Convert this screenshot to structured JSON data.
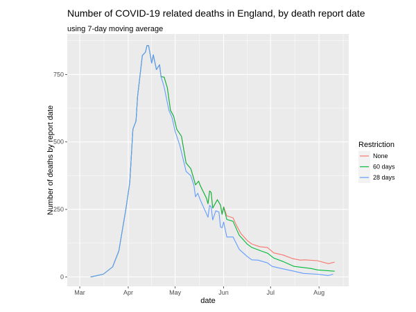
{
  "chart_data": {
    "type": "line",
    "title": "Number of COVID-19 related deaths in England, by death report date",
    "subtitle": "using 7-day moving average",
    "xlabel": "date",
    "ylabel": "Number of deaths by report date",
    "x_unit": "days since 1 Mar",
    "x_ticks": [
      {
        "label": "Mar",
        "day": 0
      },
      {
        "label": "Apr",
        "day": 31
      },
      {
        "label": "May",
        "day": 61
      },
      {
        "label": "Jun",
        "day": 92
      },
      {
        "label": "Jul",
        "day": 122
      },
      {
        "label": "Aug",
        "day": 153
      }
    ],
    "y_ticks": [
      0,
      250,
      500,
      750
    ],
    "xlim": [
      -8,
      172
    ],
    "ylim": [
      -35,
      900
    ],
    "grid": true,
    "legend": {
      "title": "Restriction",
      "placement": "right"
    },
    "series": [
      {
        "name": "None",
        "color": "#F8766D",
        "points": [
          [
            7,
            0
          ],
          [
            15,
            10
          ],
          [
            21,
            37
          ],
          [
            25,
            96
          ],
          [
            29.5,
            252
          ],
          [
            32,
            350
          ],
          [
            34,
            547
          ],
          [
            36,
            578
          ],
          [
            37,
            670
          ],
          [
            40,
            820
          ],
          [
            42,
            833
          ],
          [
            43,
            857
          ],
          [
            44,
            857
          ],
          [
            45,
            826
          ],
          [
            46,
            792
          ],
          [
            47,
            823
          ],
          [
            49,
            768
          ],
          [
            51,
            786
          ],
          [
            52,
            742
          ],
          [
            54,
            740
          ],
          [
            56,
            700
          ],
          [
            58,
            617
          ],
          [
            60,
            596
          ],
          [
            62,
            547
          ],
          [
            65,
            521
          ],
          [
            68,
            422
          ],
          [
            71,
            401
          ],
          [
            74,
            341
          ],
          [
            76,
            355
          ],
          [
            77,
            339
          ],
          [
            81,
            292
          ],
          [
            82,
            271
          ],
          [
            83,
            318
          ],
          [
            84,
            313
          ],
          [
            85,
            255
          ],
          [
            88,
            286
          ],
          [
            90,
            266
          ],
          [
            91,
            232
          ],
          [
            92,
            260
          ],
          [
            94,
            226
          ],
          [
            98,
            219
          ],
          [
            100,
            193
          ],
          [
            103,
            161
          ],
          [
            107,
            135
          ],
          [
            110,
            122
          ],
          [
            115,
            112
          ],
          [
            120,
            109
          ],
          [
            124,
            89
          ],
          [
            130,
            81
          ],
          [
            136,
            68
          ],
          [
            141,
            62
          ],
          [
            144,
            63
          ],
          [
            152,
            60
          ],
          [
            159,
            49
          ],
          [
            163,
            55
          ]
        ]
      },
      {
        "name": "60 days",
        "color": "#00BA38",
        "points": [
          [
            7,
            0
          ],
          [
            15,
            10
          ],
          [
            21,
            37
          ],
          [
            25,
            96
          ],
          [
            29.5,
            252
          ],
          [
            32,
            350
          ],
          [
            34,
            547
          ],
          [
            36,
            578
          ],
          [
            37,
            670
          ],
          [
            40,
            820
          ],
          [
            42,
            833
          ],
          [
            43,
            857
          ],
          [
            44,
            857
          ],
          [
            45,
            826
          ],
          [
            46,
            792
          ],
          [
            47,
            823
          ],
          [
            49,
            768
          ],
          [
            51,
            786
          ],
          [
            52,
            742
          ],
          [
            54,
            740
          ],
          [
            56,
            700
          ],
          [
            58,
            617
          ],
          [
            60,
            596
          ],
          [
            62,
            547
          ],
          [
            65,
            521
          ],
          [
            68,
            422
          ],
          [
            71,
            401
          ],
          [
            74,
            341
          ],
          [
            76,
            355
          ],
          [
            77,
            339
          ],
          [
            81,
            292
          ],
          [
            82,
            271
          ],
          [
            83,
            318
          ],
          [
            84,
            313
          ],
          [
            85,
            255
          ],
          [
            88,
            286
          ],
          [
            90,
            266
          ],
          [
            91,
            232
          ],
          [
            92,
            258
          ],
          [
            94,
            213
          ],
          [
            98,
            206
          ],
          [
            100,
            180
          ],
          [
            102,
            154
          ],
          [
            107,
            122
          ],
          [
            110,
            109
          ],
          [
            116,
            96
          ],
          [
            120,
            88
          ],
          [
            124,
            70
          ],
          [
            130,
            57
          ],
          [
            137,
            39
          ],
          [
            148,
            31
          ],
          [
            152,
            26
          ],
          [
            163,
            21
          ]
        ]
      },
      {
        "name": "28 days",
        "color": "#619CFF",
        "points": [
          [
            7,
            0
          ],
          [
            15,
            10
          ],
          [
            21,
            37
          ],
          [
            25,
            96
          ],
          [
            29.5,
            252
          ],
          [
            32,
            350
          ],
          [
            34,
            547
          ],
          [
            36,
            578
          ],
          [
            37,
            670
          ],
          [
            40,
            820
          ],
          [
            42,
            833
          ],
          [
            43,
            857
          ],
          [
            44,
            857
          ],
          [
            45,
            826
          ],
          [
            46,
            792
          ],
          [
            47,
            823
          ],
          [
            49,
            768
          ],
          [
            51,
            786
          ],
          [
            52,
            742
          ],
          [
            54,
            703
          ],
          [
            57,
            617
          ],
          [
            59,
            591
          ],
          [
            61,
            539
          ],
          [
            64,
            487
          ],
          [
            68,
            391
          ],
          [
            71,
            375
          ],
          [
            73,
            339
          ],
          [
            74,
            297
          ],
          [
            75.5,
            310
          ],
          [
            77,
            286
          ],
          [
            80,
            247
          ],
          [
            82,
            221
          ],
          [
            83,
            265
          ],
          [
            84,
            260
          ],
          [
            85,
            211
          ],
          [
            87,
            245
          ],
          [
            89,
            240
          ],
          [
            90,
            185
          ],
          [
            91,
            182
          ],
          [
            92,
            203
          ],
          [
            94,
            148
          ],
          [
            98,
            148
          ],
          [
            102,
            102
          ],
          [
            107,
            76
          ],
          [
            110,
            63
          ],
          [
            114,
            62
          ],
          [
            120,
            52
          ],
          [
            123,
            39
          ],
          [
            129,
            31
          ],
          [
            137,
            21
          ],
          [
            143,
            13
          ],
          [
            152,
            10
          ],
          [
            159,
            5
          ],
          [
            162,
            10
          ]
        ]
      }
    ]
  }
}
